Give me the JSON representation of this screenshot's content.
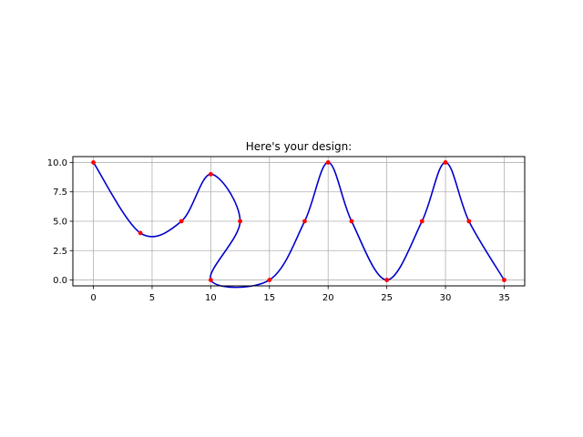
{
  "chart_data": {
    "type": "line",
    "title": "Here's your design:",
    "xlabel": "",
    "ylabel": "",
    "xlim": [
      -1.75,
      36.75
    ],
    "ylim": [
      -0.5,
      10.5
    ],
    "xticks": [
      0,
      5,
      10,
      15,
      20,
      25,
      30,
      35
    ],
    "xtick_labels": [
      "0",
      "5",
      "10",
      "15",
      "20",
      "25",
      "30",
      "35"
    ],
    "yticks": [
      0.0,
      2.5,
      5.0,
      7.5,
      10.0
    ],
    "ytick_labels": [
      "0.0",
      "2.5",
      "5.0",
      "7.5",
      "10.0"
    ],
    "grid": true,
    "colors": {
      "curve": "#0000cc",
      "points": "#ff0000",
      "grid": "#b0b0b0"
    },
    "series": [
      {
        "kind": "spline-curve",
        "color": "#0000cc",
        "x": [
          0,
          4,
          7.5,
          10,
          12.5,
          10,
          15,
          18,
          20,
          22,
          25,
          28,
          30,
          32,
          35
        ],
        "y": [
          10,
          4,
          5,
          9,
          5,
          0,
          0,
          5,
          10,
          5,
          0,
          5,
          10,
          5,
          0
        ]
      },
      {
        "kind": "control-points",
        "color": "#ff0000",
        "x": [
          0,
          4,
          7.5,
          10,
          12.5,
          10,
          15,
          18,
          20,
          22,
          25,
          28,
          30,
          32,
          35
        ],
        "y": [
          10,
          4,
          5,
          9,
          5,
          0,
          0,
          5,
          10,
          5,
          0,
          5,
          10,
          5,
          0
        ]
      }
    ]
  }
}
